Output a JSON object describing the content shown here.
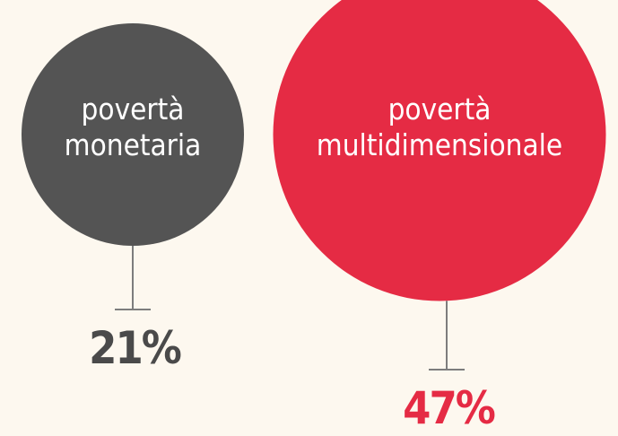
{
  "chart_data": {
    "type": "bubble",
    "categories": [
      "povertà monetaria",
      "povertà multidimensionale"
    ],
    "values": [
      21,
      47
    ],
    "value_labels": [
      "21%",
      "47%"
    ],
    "colors": [
      "#545454",
      "#e52b44"
    ]
  }
}
